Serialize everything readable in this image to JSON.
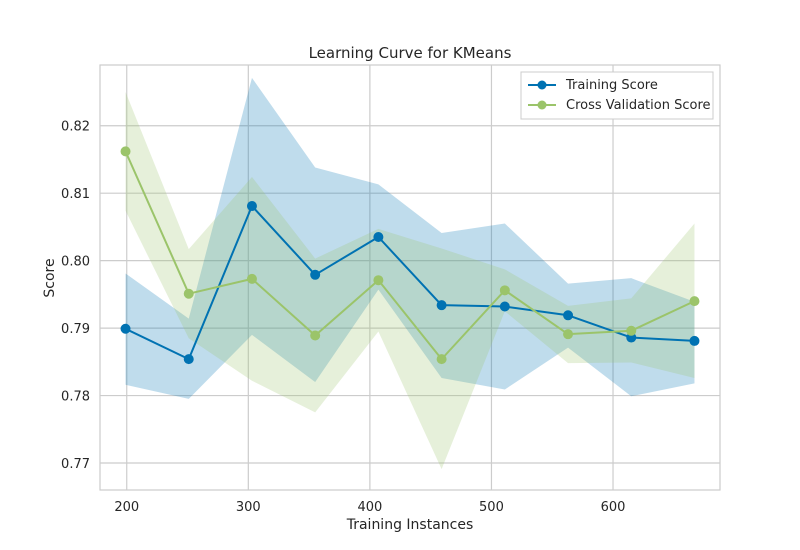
{
  "chart_data": {
    "type": "line",
    "title": "Learning Curve for KMeans",
    "xlabel": "Training Instances",
    "ylabel": "Score",
    "x": [
      199,
      251,
      303,
      355,
      407,
      459,
      511,
      563,
      615,
      667
    ],
    "xlim": [
      178,
      688
    ],
    "ylim": [
      0.766,
      0.829
    ],
    "xticks": [
      200,
      300,
      400,
      500,
      600
    ],
    "yticks": [
      0.77,
      0.78,
      0.79,
      0.8,
      0.81,
      0.82
    ],
    "ytick_labels": [
      "0.77",
      "0.78",
      "0.79",
      "0.80",
      "0.81",
      "0.82"
    ],
    "grid": true,
    "legend_position": "top-right",
    "series": [
      {
        "name": "Training Score",
        "color": "#0072B2",
        "marker": "circle",
        "values": [
          0.7899,
          0.7854,
          0.8081,
          0.7979,
          0.8035,
          0.7934,
          0.7932,
          0.7919,
          0.7886,
          0.7881
        ],
        "upper": [
          0.7981,
          0.7914,
          0.8271,
          0.8138,
          0.8113,
          0.8041,
          0.8055,
          0.7966,
          0.7974,
          0.7939
        ],
        "lower": [
          0.7816,
          0.7795,
          0.789,
          0.782,
          0.7957,
          0.7826,
          0.7809,
          0.7871,
          0.7799,
          0.7818
        ]
      },
      {
        "name": "Cross Validation Score",
        "color": "#9BC46A",
        "marker": "circle",
        "values": [
          0.8162,
          0.7951,
          0.7973,
          0.7889,
          0.7971,
          0.7854,
          0.7956,
          0.7891,
          0.7896,
          0.794
        ],
        "upper": [
          0.825,
          0.8017,
          0.8124,
          0.8003,
          0.8047,
          0.8018,
          0.7987,
          0.7933,
          0.7944,
          0.8055
        ],
        "lower": [
          0.8074,
          0.7885,
          0.7822,
          0.7775,
          0.7895,
          0.7691,
          0.7925,
          0.7848,
          0.7849,
          0.7826
        ]
      }
    ]
  }
}
